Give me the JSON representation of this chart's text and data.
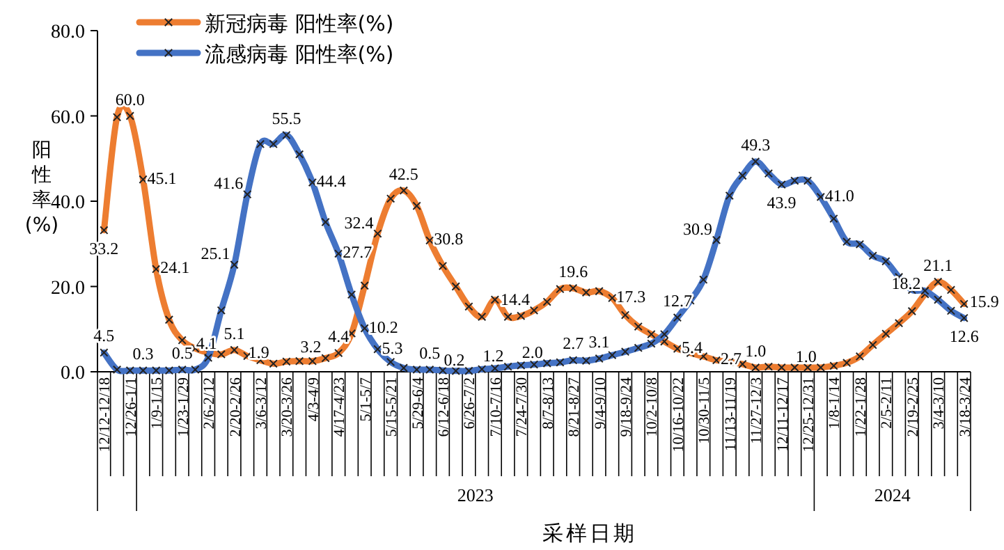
{
  "chart_data": {
    "type": "line",
    "ylabel": "阳性率(%)",
    "xlabel": "采样日期",
    "ylim": [
      0,
      80
    ],
    "yticks": [
      {
        "value": 0,
        "label": "0.0"
      },
      {
        "value": 20,
        "label": "20.0"
      },
      {
        "value": 40,
        "label": "40.0"
      },
      {
        "value": 60,
        "label": "60.0"
      },
      {
        "value": 80,
        "label": "80.0"
      }
    ],
    "legend": "top left",
    "marker": "cross",
    "grid": false,
    "annotations": [
      "2023",
      "2024"
    ],
    "categories": [
      "12/12-12/18",
      null,
      "12/26-1/1",
      null,
      "1/9-1/15",
      null,
      "1/23-1/29",
      null,
      "2/6-2/12",
      null,
      "2/20-2/26",
      null,
      "3/6-3/12",
      null,
      "3/20-3/26",
      null,
      "4/3-4/9",
      null,
      "4/17-4/23",
      null,
      "5/1-5/7",
      null,
      "5/15-5/21",
      null,
      "5/29-6/4",
      null,
      "6/12-6/18",
      null,
      "6/26-7/2",
      null,
      "7/10-7/16",
      null,
      "7/24-7/30",
      null,
      "8/7-8/13",
      null,
      "8/21-8/27",
      null,
      "9/4-9/10",
      null,
      "9/18-9/24",
      null,
      "10/2-10/8",
      null,
      "10/16-10/22",
      null,
      "10/30-11/5",
      null,
      "11/13-11/19",
      null,
      "11/27-12/3",
      null,
      "12/11-12/17",
      null,
      "12/25-12/31",
      null,
      "1/8-1/14",
      null,
      "1/22-1/28",
      null,
      "2/5-2/11",
      null,
      "2/19-2/25",
      null,
      "3/4-3/10",
      null,
      "3/18-3/24"
    ],
    "series": [
      {
        "name": "新冠病毒 阳性率(%)",
        "color": "#ed7d31",
        "values": [
          33.2,
          59.7,
          60.0,
          45.1,
          24.1,
          12.2,
          7.4,
          5.5,
          4.5,
          4.1,
          5.1,
          3.7,
          2.7,
          1.9,
          2.4,
          2.5,
          2.5,
          3.2,
          4.4,
          9.0,
          20.2,
          32.4,
          40.6,
          42.5,
          38.9,
          30.8,
          24.8,
          20.0,
          15.3,
          12.9,
          16.9,
          12.9,
          13.1,
          14.4,
          16.4,
          19.4,
          19.6,
          18.6,
          18.9,
          17.3,
          13.3,
          10.6,
          8.8,
          7.1,
          5.4,
          4.4,
          3.6,
          2.7,
          2.3,
          1.8,
          1.0,
          1.2,
          1.0,
          1.0,
          1.0,
          1.0,
          1.4,
          2.1,
          3.6,
          6.3,
          8.9,
          11.4,
          14.2,
          18.2,
          21.1,
          19.2,
          15.9
        ],
        "value_labels": [
          "33.2",
          null,
          "60.0",
          "45.1",
          "24.1",
          null,
          null,
          null,
          null,
          "4.1",
          "5.1",
          null,
          null,
          "1.9",
          null,
          null,
          null,
          "3.2",
          "4.4",
          null,
          null,
          "32.4",
          null,
          "42.5",
          null,
          "30.8",
          null,
          null,
          null,
          null,
          null,
          null,
          null,
          "14.4",
          null,
          null,
          "19.6",
          null,
          null,
          "17.3",
          null,
          null,
          null,
          null,
          "5.4",
          null,
          null,
          "2.7",
          null,
          null,
          "1.0",
          null,
          null,
          null,
          null,
          "1.0",
          null,
          null,
          null,
          null,
          null,
          null,
          null,
          "18.2",
          "21.1",
          null,
          "15.9"
        ]
      },
      {
        "name": "流感病毒 阳性率(%)",
        "color": "#4472c4",
        "values": [
          4.5,
          0.5,
          0.3,
          0.3,
          0.3,
          0.3,
          0.5,
          0.5,
          3.3,
          14.4,
          25.1,
          41.6,
          53.4,
          53.4,
          55.5,
          51.0,
          44.4,
          35.1,
          27.7,
          18.1,
          10.2,
          5.3,
          2.3,
          0.9,
          0.5,
          0.5,
          0.3,
          0.2,
          0.2,
          0.6,
          0.8,
          1.2,
          1.5,
          1.7,
          2.0,
          2.2,
          2.7,
          2.6,
          3.1,
          3.9,
          4.7,
          5.6,
          6.6,
          8.8,
          12.7,
          16.7,
          21.6,
          30.9,
          41.3,
          46.0,
          49.3,
          46.5,
          43.9,
          44.8,
          44.8,
          41.0,
          35.9,
          30.5,
          29.9,
          27.2,
          25.9,
          22.2,
          19.2,
          19.0,
          16.9,
          14.3,
          12.6
        ],
        "value_labels": [
          "4.5",
          null,
          null,
          "0.3",
          null,
          null,
          "0.5",
          null,
          null,
          null,
          "25.1",
          "41.6",
          null,
          null,
          "55.5",
          null,
          "44.4",
          null,
          "27.7",
          null,
          "10.2",
          "5.3",
          null,
          null,
          null,
          "0.5",
          null,
          null,
          "0.2",
          null,
          null,
          "1.2",
          null,
          null,
          "2.0",
          null,
          "2.7",
          null,
          "3.1",
          null,
          null,
          null,
          null,
          null,
          "12.7",
          null,
          null,
          "30.9",
          null,
          null,
          "49.3",
          null,
          "43.9",
          null,
          null,
          "41.0",
          null,
          null,
          null,
          null,
          null,
          null,
          null,
          null,
          null,
          null,
          "12.6"
        ]
      }
    ]
  }
}
